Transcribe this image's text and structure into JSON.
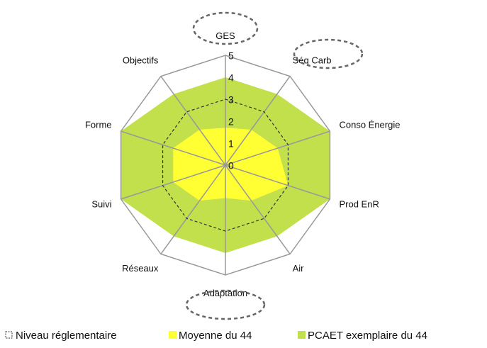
{
  "chart_data": {
    "type": "radar",
    "categories": [
      "GES",
      "Séq Carb",
      "Conso Énergie",
      "Prod EnR",
      "Air",
      "Adaptation",
      "Réseaux",
      "Suivi",
      "Forme",
      "Objectifs"
    ],
    "series": [
      {
        "name": "Niveau réglementaire",
        "color": "#333333",
        "style": "dashed",
        "values": [
          3,
          3,
          3,
          3,
          3,
          3,
          3,
          3,
          3,
          3
        ]
      },
      {
        "name": "Moyenne du 44",
        "color": "#ffff33",
        "style": "filled",
        "values": [
          1.7,
          2,
          2.5,
          3,
          2,
          1.5,
          2,
          2.5,
          2.5,
          2
        ]
      },
      {
        "name": "PCAET exemplaire du 44",
        "color": "#c2df4c",
        "style": "filled",
        "values": [
          4,
          4,
          5,
          5,
          4,
          4,
          4,
          5,
          5,
          4
        ]
      }
    ],
    "ylim": [
      0,
      5
    ],
    "yticks": [
      0,
      1,
      2,
      3,
      4,
      5
    ]
  }
}
